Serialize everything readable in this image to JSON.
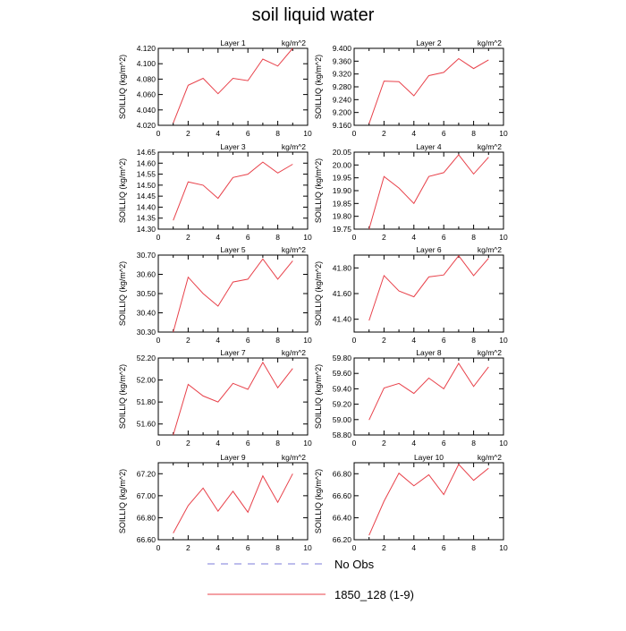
{
  "title": "soil liquid water",
  "legend": {
    "entries": [
      {
        "label": "No Obs",
        "color": "#7b7bd9",
        "style": "dashed"
      },
      {
        "label": "1850_128 (1-9)",
        "color": "#e8414a",
        "style": "solid"
      }
    ]
  },
  "colors": {
    "series": "#e8414a",
    "obs": "#7b7bd9",
    "axis": "#000000"
  },
  "chart_data": [
    {
      "type": "line",
      "title": "Layer 1",
      "units": "kg/m^2",
      "ylabel": "SOILLIQ  (kg/m^2)",
      "xlim": [
        0,
        10
      ],
      "xticks": [
        0,
        2,
        4,
        6,
        8,
        10
      ],
      "ylim": [
        4.02,
        4.12
      ],
      "yticks": [
        "4.020",
        "4.040",
        "4.060",
        "4.080",
        "4.100",
        "4.120"
      ],
      "x": [
        1,
        2,
        3,
        4,
        5,
        6,
        7,
        8,
        9
      ],
      "series": [
        {
          "name": "1850_128 (1-9)",
          "values": [
            4.023,
            4.072,
            4.081,
            4.061,
            4.081,
            4.078,
            4.106,
            4.097,
            4.12
          ]
        }
      ]
    },
    {
      "type": "line",
      "title": "Layer 2",
      "units": "kg/m^2",
      "ylabel": "SOILLIQ  (kg/m^2)",
      "xlim": [
        0,
        10
      ],
      "xticks": [
        0,
        2,
        4,
        6,
        8,
        10
      ],
      "ylim": [
        9.16,
        9.4
      ],
      "yticks": [
        "9.160",
        "9.200",
        "9.240",
        "9.280",
        "9.320",
        "9.360",
        "9.400"
      ],
      "x": [
        1,
        2,
        3,
        4,
        5,
        6,
        7,
        8,
        9
      ],
      "series": [
        {
          "name": "1850_128 (1-9)",
          "values": [
            9.165,
            9.298,
            9.296,
            9.252,
            9.315,
            9.325,
            9.368,
            9.337,
            9.364
          ]
        }
      ]
    },
    {
      "type": "line",
      "title": "Layer 3",
      "units": "kg/m^2",
      "ylabel": "SOILLIQ  (kg/m^2)",
      "xlim": [
        0,
        10
      ],
      "xticks": [
        0,
        2,
        4,
        6,
        8,
        10
      ],
      "ylim": [
        14.3,
        14.65
      ],
      "yticks": [
        "14.30",
        "14.35",
        "14.40",
        "14.45",
        "14.50",
        "14.55",
        "14.60",
        "14.65"
      ],
      "x": [
        1,
        2,
        3,
        4,
        5,
        6,
        7,
        8,
        9
      ],
      "series": [
        {
          "name": "1850_128 (1-9)",
          "values": [
            14.34,
            14.515,
            14.5,
            14.44,
            14.535,
            14.55,
            14.605,
            14.555,
            14.595
          ]
        }
      ]
    },
    {
      "type": "line",
      "title": "Layer 4",
      "units": "kg/m^2",
      "ylabel": "SOILLIQ  (kg/m^2)",
      "xlim": [
        0,
        10
      ],
      "xticks": [
        0,
        2,
        4,
        6,
        8,
        10
      ],
      "ylim": [
        19.75,
        20.05
      ],
      "yticks": [
        "19.75",
        "19.80",
        "19.85",
        "19.90",
        "19.95",
        "20.00",
        "20.05"
      ],
      "x": [
        1,
        2,
        3,
        4,
        5,
        6,
        7,
        8,
        9
      ],
      "series": [
        {
          "name": "1850_128 (1-9)",
          "values": [
            19.75,
            19.955,
            19.91,
            19.85,
            19.955,
            19.97,
            20.04,
            19.965,
            20.03
          ]
        }
      ]
    },
    {
      "type": "line",
      "title": "Layer 5",
      "units": "kg/m^2",
      "ylabel": "SOILLIQ  (kg/m^2)",
      "xlim": [
        0,
        10
      ],
      "xticks": [
        0,
        2,
        4,
        6,
        8,
        10
      ],
      "ylim": [
        30.3,
        30.7
      ],
      "yticks": [
        "30.30",
        "30.40",
        "30.50",
        "30.60",
        "30.70"
      ],
      "x": [
        1,
        2,
        3,
        4,
        5,
        6,
        7,
        8,
        9
      ],
      "series": [
        {
          "name": "1850_128 (1-9)",
          "values": [
            30.3,
            30.585,
            30.5,
            30.435,
            30.56,
            30.575,
            30.68,
            30.575,
            30.67
          ]
        }
      ]
    },
    {
      "type": "line",
      "title": "Layer 6",
      "units": "kg/m^2",
      "ylabel": "SOILLIQ  (kg/m^2)",
      "xlim": [
        0,
        10
      ],
      "xticks": [
        0,
        2,
        4,
        6,
        8,
        10
      ],
      "ylim": [
        41.3,
        41.9
      ],
      "yticks": [
        "41.40",
        "41.60",
        "41.80"
      ],
      "x": [
        1,
        2,
        3,
        4,
        5,
        6,
        7,
        8,
        9
      ],
      "series": [
        {
          "name": "1850_128 (1-9)",
          "values": [
            41.39,
            41.74,
            41.62,
            41.575,
            41.73,
            41.745,
            41.895,
            41.74,
            41.875
          ]
        }
      ]
    },
    {
      "type": "line",
      "title": "Layer 7",
      "units": "kg/m^2",
      "ylabel": "SOILLIQ  (kg/m^2)",
      "xlim": [
        0,
        10
      ],
      "xticks": [
        0,
        2,
        4,
        6,
        8,
        10
      ],
      "ylim": [
        51.5,
        52.2
      ],
      "yticks": [
        "51.60",
        "51.80",
        "52.00",
        "52.20"
      ],
      "x": [
        1,
        2,
        3,
        4,
        5,
        6,
        7,
        8,
        9
      ],
      "series": [
        {
          "name": "1850_128 (1-9)",
          "values": [
            51.5,
            51.96,
            51.855,
            51.8,
            51.97,
            51.915,
            52.16,
            51.93,
            52.105
          ]
        }
      ]
    },
    {
      "type": "line",
      "title": "Layer 8",
      "units": "kg/m^2",
      "ylabel": "SOILLIQ  (kg/m^2)",
      "xlim": [
        0,
        10
      ],
      "xticks": [
        0,
        2,
        4,
        6,
        8,
        10
      ],
      "ylim": [
        58.8,
        59.8
      ],
      "yticks": [
        "58.80",
        "59.00",
        "59.20",
        "59.40",
        "59.60",
        "59.80"
      ],
      "x": [
        1,
        2,
        3,
        4,
        5,
        6,
        7,
        8,
        9
      ],
      "series": [
        {
          "name": "1850_128 (1-9)",
          "values": [
            58.995,
            59.41,
            59.47,
            59.34,
            59.54,
            59.4,
            59.73,
            59.43,
            59.685
          ]
        }
      ]
    },
    {
      "type": "line",
      "title": "Layer 9",
      "units": "kg/m^2",
      "ylabel": "SOILLIQ  (kg/m^2)",
      "xlim": [
        0,
        10
      ],
      "xticks": [
        0,
        2,
        4,
        6,
        8,
        10
      ],
      "ylim": [
        66.6,
        67.3
      ],
      "yticks": [
        "66.60",
        "66.80",
        "67.00",
        "67.20"
      ],
      "x": [
        1,
        2,
        3,
        4,
        5,
        6,
        7,
        8,
        9
      ],
      "series": [
        {
          "name": "1850_128 (1-9)",
          "values": [
            66.66,
            66.91,
            67.07,
            66.86,
            67.04,
            66.85,
            67.18,
            66.94,
            67.2
          ]
        }
      ]
    },
    {
      "type": "line",
      "title": "Layer 10",
      "units": "kg/m^2",
      "ylabel": "SOILLIQ  (kg/m^2)",
      "xlim": [
        0,
        10
      ],
      "xticks": [
        0,
        2,
        4,
        6,
        8,
        10
      ],
      "ylim": [
        66.2,
        66.9
      ],
      "yticks": [
        "66.20",
        "66.40",
        "66.60",
        "66.80"
      ],
      "x": [
        1,
        2,
        3,
        4,
        5,
        6,
        7,
        8,
        9
      ],
      "series": [
        {
          "name": "1850_128 (1-9)",
          "values": [
            66.24,
            66.55,
            66.805,
            66.69,
            66.79,
            66.61,
            66.885,
            66.74,
            66.85
          ]
        }
      ]
    }
  ]
}
